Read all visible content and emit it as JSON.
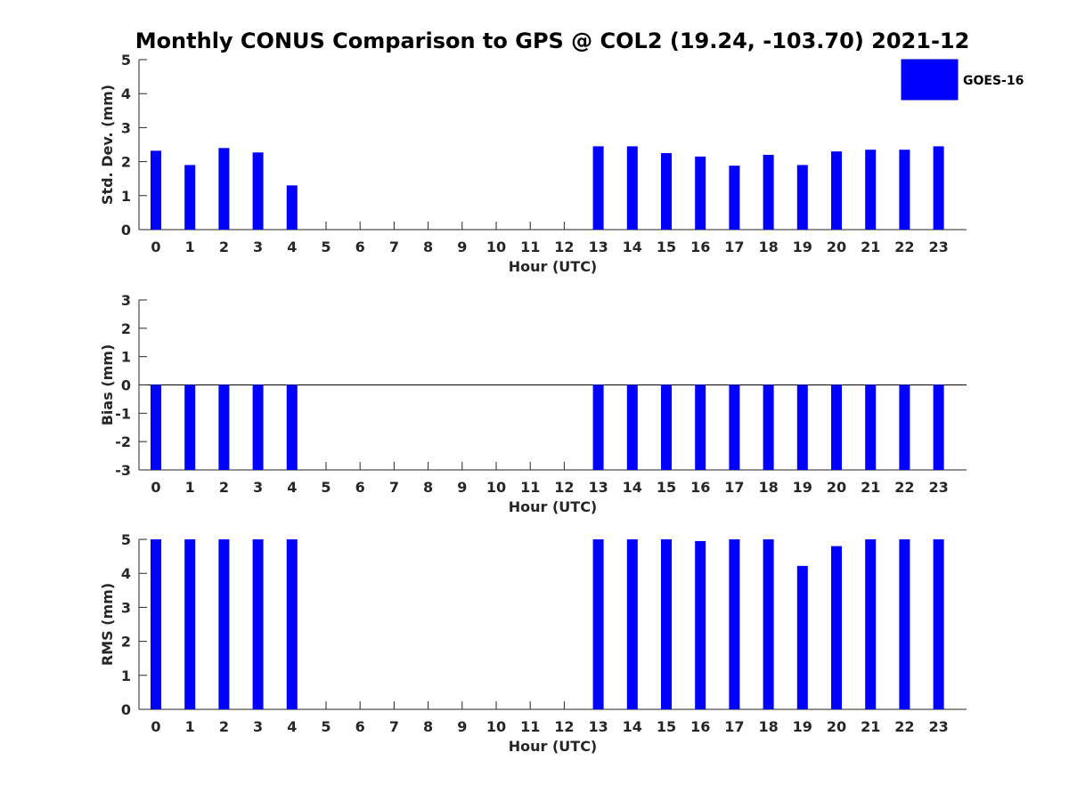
{
  "title": "Monthly CONUS Comparison to GPS @ COL2 (19.24, -103.70) 2021-12",
  "colors": {
    "bar": "#0000ff",
    "axis": "#262626"
  },
  "chart_data": [
    {
      "type": "bar",
      "name": "std-dev",
      "ylabel": "Std. Dev. (mm)",
      "xlabel": "Hour (UTC)",
      "ylim": [
        0,
        5
      ],
      "yticks": [
        "0",
        "1",
        "2",
        "3",
        "4",
        "5"
      ],
      "categories": [
        "0",
        "1",
        "2",
        "3",
        "4",
        "5",
        "6",
        "7",
        "8",
        "9",
        "10",
        "11",
        "12",
        "13",
        "14",
        "15",
        "16",
        "17",
        "18",
        "19",
        "20",
        "21",
        "22",
        "23"
      ],
      "series": [
        {
          "name": "GOES-16",
          "values": [
            2.32,
            1.9,
            2.4,
            2.27,
            1.3,
            null,
            null,
            null,
            null,
            null,
            null,
            null,
            null,
            2.45,
            2.45,
            2.25,
            2.15,
            1.88,
            2.2,
            1.9,
            2.3,
            2.35,
            2.35,
            2.45
          ]
        }
      ],
      "legend": {
        "position": "top-right",
        "entries": [
          "GOES-16"
        ]
      }
    },
    {
      "type": "bar",
      "name": "bias",
      "ylabel": "Bias (mm)",
      "xlabel": "Hour (UTC)",
      "ylim": [
        -3,
        3
      ],
      "yticks": [
        "-3",
        "-2",
        "-1",
        "0",
        "1",
        "2",
        "3"
      ],
      "categories": [
        "0",
        "1",
        "2",
        "3",
        "4",
        "5",
        "6",
        "7",
        "8",
        "9",
        "10",
        "11",
        "12",
        "13",
        "14",
        "15",
        "16",
        "17",
        "18",
        "19",
        "20",
        "21",
        "22",
        "23"
      ],
      "series": [
        {
          "name": "GOES-16",
          "values": [
            -3,
            -3,
            -3,
            -3,
            -3,
            null,
            null,
            null,
            null,
            null,
            null,
            null,
            null,
            -3,
            -3,
            -3,
            -3,
            -3,
            -3,
            -3,
            -3,
            -3,
            -3,
            -3
          ]
        }
      ]
    },
    {
      "type": "bar",
      "name": "rms",
      "ylabel": "RMS (mm)",
      "xlabel": "Hour (UTC)",
      "ylim": [
        0,
        5
      ],
      "yticks": [
        "0",
        "1",
        "2",
        "3",
        "4",
        "5"
      ],
      "categories": [
        "0",
        "1",
        "2",
        "3",
        "4",
        "5",
        "6",
        "7",
        "8",
        "9",
        "10",
        "11",
        "12",
        "13",
        "14",
        "15",
        "16",
        "17",
        "18",
        "19",
        "20",
        "21",
        "22",
        "23"
      ],
      "series": [
        {
          "name": "GOES-16",
          "values": [
            5,
            5,
            5,
            5,
            5,
            null,
            null,
            null,
            null,
            null,
            null,
            null,
            null,
            5,
            5,
            5,
            4.95,
            5,
            5,
            4.22,
            4.8,
            5,
            5,
            5
          ]
        }
      ]
    }
  ]
}
